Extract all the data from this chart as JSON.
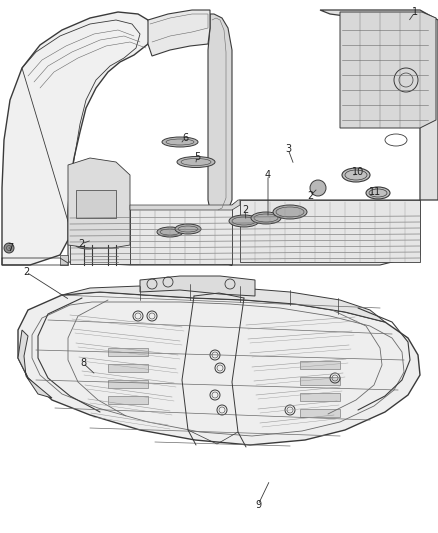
{
  "background_color": "#ffffff",
  "line_color": "#3a3a3a",
  "light_line": "#6a6a6a",
  "lighter_line": "#999999",
  "label_color": "#222222",
  "fig_width": 4.38,
  "fig_height": 5.33,
  "dpi": 100,
  "callouts_top": [
    [
      "1",
      415,
      12
    ],
    [
      "2",
      310,
      196
    ],
    [
      "3",
      288,
      149
    ],
    [
      "4",
      268,
      175
    ],
    [
      "2",
      245,
      210
    ],
    [
      "5",
      197,
      157
    ],
    [
      "6",
      185,
      138
    ],
    [
      "2",
      81,
      244
    ],
    [
      "7",
      10,
      247
    ],
    [
      "10",
      358,
      172
    ],
    [
      "11",
      375,
      192
    ]
  ],
  "callouts_bot": [
    [
      "2",
      26,
      270
    ],
    [
      "8",
      83,
      363
    ],
    [
      "9",
      258,
      505
    ]
  ]
}
